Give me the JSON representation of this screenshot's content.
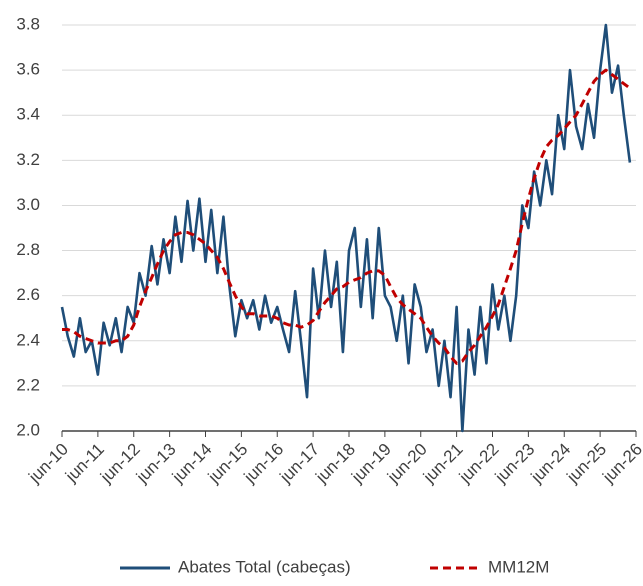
{
  "chart_data": {
    "type": "line",
    "x": [
      2010.42,
      2010.58,
      2010.75,
      2010.92,
      2011.08,
      2011.25,
      2011.42,
      2011.58,
      2011.75,
      2011.92,
      2012.08,
      2012.25,
      2012.42,
      2012.58,
      2012.75,
      2012.92,
      2013.08,
      2013.25,
      2013.42,
      2013.58,
      2013.75,
      2013.92,
      2014.08,
      2014.25,
      2014.42,
      2014.58,
      2014.75,
      2014.92,
      2015.08,
      2015.25,
      2015.42,
      2015.58,
      2015.75,
      2015.92,
      2016.08,
      2016.25,
      2016.42,
      2016.58,
      2016.75,
      2016.92,
      2017.08,
      2017.25,
      2017.42,
      2017.58,
      2017.75,
      2017.92,
      2018.08,
      2018.25,
      2018.42,
      2018.58,
      2018.75,
      2018.92,
      2019.08,
      2019.25,
      2019.42,
      2019.58,
      2019.75,
      2019.92,
      2020.08,
      2020.25,
      2020.42,
      2020.58,
      2020.75,
      2020.92,
      2021.08,
      2021.25,
      2021.42,
      2021.58,
      2021.75,
      2021.92,
      2022.08,
      2022.25,
      2022.42,
      2022.58,
      2022.75,
      2022.92,
      2023.08,
      2023.25,
      2023.42,
      2023.58,
      2023.75,
      2023.92,
      2024.08,
      2024.25,
      2024.42,
      2024.58,
      2024.75,
      2024.92,
      2025.08,
      2025.25,
      2025.42,
      2025.58,
      2025.75,
      2025.92,
      2026.08,
      2026.25
    ],
    "series": [
      {
        "name": "Abates Total (cabeças)",
        "color": "#1f4e79",
        "dash": false,
        "values": [
          2.55,
          2.42,
          2.33,
          2.5,
          2.35,
          2.4,
          2.25,
          2.48,
          2.38,
          2.5,
          2.35,
          2.55,
          2.48,
          2.7,
          2.6,
          2.82,
          2.65,
          2.85,
          2.7,
          2.95,
          2.75,
          3.02,
          2.8,
          3.03,
          2.75,
          2.98,
          2.7,
          2.95,
          2.65,
          2.42,
          2.58,
          2.5,
          2.58,
          2.45,
          2.6,
          2.48,
          2.55,
          2.45,
          2.35,
          2.62,
          2.4,
          2.15,
          2.72,
          2.5,
          2.8,
          2.55,
          2.75,
          2.35,
          2.8,
          2.9,
          2.55,
          2.85,
          2.5,
          2.9,
          2.6,
          2.55,
          2.4,
          2.6,
          2.3,
          2.65,
          2.55,
          2.35,
          2.45,
          2.2,
          2.4,
          2.15,
          2.55,
          2.0,
          2.45,
          2.25,
          2.55,
          2.3,
          2.65,
          2.45,
          2.6,
          2.4,
          2.6,
          3.0,
          2.9,
          3.15,
          3.0,
          3.2,
          3.05,
          3.4,
          3.25,
          3.6,
          3.35,
          3.25,
          3.45,
          3.3,
          3.6,
          3.8,
          3.5,
          3.62,
          3.4,
          3.19
        ]
      },
      {
        "name": "MM12M",
        "color": "#c00000",
        "dash": true,
        "values": [
          2.45,
          2.45,
          2.44,
          2.42,
          2.41,
          2.4,
          2.39,
          2.39,
          2.39,
          2.4,
          2.4,
          2.42,
          2.47,
          2.55,
          2.62,
          2.68,
          2.74,
          2.8,
          2.84,
          2.87,
          2.88,
          2.88,
          2.87,
          2.85,
          2.83,
          2.8,
          2.77,
          2.72,
          2.66,
          2.6,
          2.55,
          2.52,
          2.52,
          2.51,
          2.51,
          2.51,
          2.5,
          2.48,
          2.47,
          2.47,
          2.46,
          2.47,
          2.49,
          2.53,
          2.57,
          2.6,
          2.63,
          2.64,
          2.66,
          2.67,
          2.68,
          2.7,
          2.71,
          2.71,
          2.69,
          2.64,
          2.59,
          2.56,
          2.54,
          2.52,
          2.5,
          2.46,
          2.42,
          2.39,
          2.37,
          2.33,
          2.3,
          2.31,
          2.35,
          2.38,
          2.42,
          2.46,
          2.51,
          2.56,
          2.64,
          2.72,
          2.8,
          2.92,
          3.03,
          3.12,
          3.2,
          3.26,
          3.29,
          3.31,
          3.34,
          3.37,
          3.4,
          3.45,
          3.5,
          3.55,
          3.58,
          3.6,
          3.58,
          3.56,
          3.54,
          3.52
        ]
      }
    ],
    "xlim": [
      2010.42,
      2026.42
    ],
    "xticks": [
      {
        "value": 2010.42,
        "label": "jun-10"
      },
      {
        "value": 2011.42,
        "label": "jun-11"
      },
      {
        "value": 2012.42,
        "label": "jun-12"
      },
      {
        "value": 2013.42,
        "label": "jun-13"
      },
      {
        "value": 2014.42,
        "label": "jun-14"
      },
      {
        "value": 2015.42,
        "label": "jun-15"
      },
      {
        "value": 2016.42,
        "label": "jun-16"
      },
      {
        "value": 2017.42,
        "label": "jun-17"
      },
      {
        "value": 2018.42,
        "label": "jun-18"
      },
      {
        "value": 2019.42,
        "label": "jun-19"
      },
      {
        "value": 2020.42,
        "label": "jun-20"
      },
      {
        "value": 2021.42,
        "label": "jun-21"
      },
      {
        "value": 2022.42,
        "label": "jun-22"
      },
      {
        "value": 2023.42,
        "label": "jun-23"
      },
      {
        "value": 2024.42,
        "label": "jun-24"
      },
      {
        "value": 2025.42,
        "label": "jun-25"
      },
      {
        "value": 2026.42,
        "label": "jun-26"
      }
    ],
    "ylim": [
      2.0,
      3.8
    ],
    "yticks": [
      {
        "value": 2.0,
        "label": "2.0"
      },
      {
        "value": 2.2,
        "label": "2.2"
      },
      {
        "value": 2.4,
        "label": "2.4"
      },
      {
        "value": 2.6,
        "label": "2.6"
      },
      {
        "value": 2.8,
        "label": "2.8"
      },
      {
        "value": 3.0,
        "label": "3.0"
      },
      {
        "value": 3.2,
        "label": "3.2"
      },
      {
        "value": 3.4,
        "label": "3.4"
      },
      {
        "value": 3.6,
        "label": "3.6"
      },
      {
        "value": 3.8,
        "label": "3.8"
      }
    ],
    "grid": true
  }
}
